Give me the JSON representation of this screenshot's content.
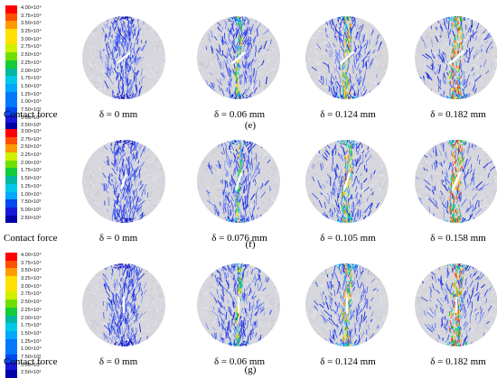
{
  "colors": {
    "palette": [
      "#ff0000",
      "#ff5000",
      "#ff9a00",
      "#ffe000",
      "#d0f000",
      "#6de000",
      "#14cc38",
      "#00b8a0",
      "#00c8e8",
      "#00a8ff",
      "#0078ff",
      "#0048f0",
      "#1818d8",
      "#0000a8"
    ]
  },
  "rows": [
    {
      "scale": [
        "4.00×10⁴",
        "3.75×10⁴",
        "3.50×10⁴",
        "3.25×10⁴",
        "3.00×10⁴",
        "2.75×10⁴",
        "2.50×10⁴",
        "2.25×10⁴",
        "2.00×10⁴",
        "1.75×10⁴",
        "1.50×10⁴",
        "1.25×10⁴",
        "1.00×10⁴",
        "7.50×10³",
        "5.00×10³",
        "2.50×10³"
      ],
      "contact_label": "Contact force",
      "deltas": [
        "δ = 0 mm",
        "δ = 0.06 mm",
        "δ = 0.124 mm",
        "δ = 0.182 mm"
      ],
      "panel": "(e)"
    },
    {
      "scale": [
        "3.00×10⁴",
        "2.75×10⁴",
        "2.50×10⁴",
        "2.25×10⁴",
        "2.00×10⁴",
        "1.75×10⁴",
        "1.50×10⁴",
        "1.25×10⁴",
        "1.00×10⁴",
        "7.50×10³",
        "5.00×10³",
        "2.50×10³"
      ],
      "contact_label": "Contact force",
      "deltas": [
        "δ = 0 mm",
        "δ = 0.076 mm",
        "δ = 0.105 mm",
        "δ = 0.158 mm"
      ],
      "panel": "(f)"
    },
    {
      "scale": [
        "4.00×10⁴",
        "3.75×10⁴",
        "3.50×10⁴",
        "3.25×10⁴",
        "3.00×10⁴",
        "2.75×10⁴",
        "2.50×10⁴",
        "2.25×10⁴",
        "2.00×10⁴",
        "1.75×10⁴",
        "1.50×10⁴",
        "1.25×10⁴",
        "1.00×10⁴",
        "7.50×10³",
        "5.00×10³",
        "2.50×10³"
      ],
      "contact_label": "Contact force",
      "deltas": [
        "δ = 0 mm",
        "δ = 0.06 mm",
        "δ = 0.124 mm",
        "δ = 0.182 mm"
      ],
      "panel": "(g)"
    }
  ]
}
